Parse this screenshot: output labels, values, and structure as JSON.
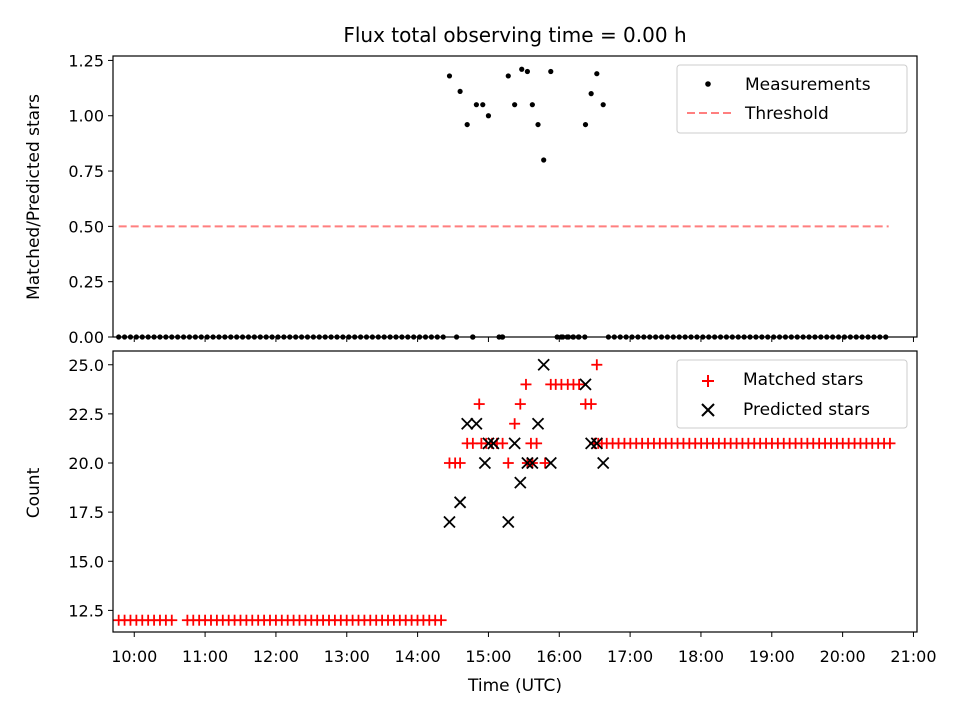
{
  "chart_data": [
    {
      "type": "scatter",
      "title": "Flux total observing time = 0.00 h",
      "xlabel": "",
      "ylabel": "Matched/Predicted stars",
      "xlim_hours": [
        9.7,
        21.05
      ],
      "ylim": [
        0,
        1.27
      ],
      "xticks_hours": [
        10,
        11,
        12,
        13,
        14,
        15,
        16,
        17,
        18,
        19,
        20,
        21
      ],
      "yticks": [
        0.0,
        0.25,
        0.5,
        0.75,
        1.0,
        1.25
      ],
      "ytick_labels": [
        "0.00",
        "0.25",
        "0.50",
        "0.75",
        "1.00",
        "1.25"
      ],
      "legend_position": "top-right",
      "legend": [
        {
          "label": "Measurements",
          "marker": "dot",
          "color": "#000000"
        },
        {
          "label": "Threshold",
          "marker": "dashed-line",
          "color": "#ff7f7f"
        }
      ],
      "threshold": {
        "value": 0.5,
        "x_start": 9.78,
        "x_end": 20.65
      },
      "zero_series": {
        "from": 9.78,
        "to": 20.65,
        "step": 0.0833,
        "gaps": [
          [
            14.42,
            14.53
          ],
          [
            14.59,
            14.75
          ],
          [
            14.83,
            15.12
          ],
          [
            15.25,
            15.95
          ],
          [
            16.28,
            16.35
          ],
          [
            16.42,
            16.65
          ]
        ]
      },
      "measurements": [
        [
          14.45,
          1.18
        ],
        [
          14.6,
          1.11
        ],
        [
          14.7,
          0.96
        ],
        [
          14.83,
          1.05
        ],
        [
          14.92,
          1.05
        ],
        [
          15.0,
          1.0
        ],
        [
          15.28,
          1.18
        ],
        [
          15.37,
          1.05
        ],
        [
          15.47,
          1.21
        ],
        [
          15.55,
          1.2
        ],
        [
          15.62,
          1.05
        ],
        [
          15.7,
          0.96
        ],
        [
          15.78,
          0.8
        ],
        [
          15.88,
          1.2
        ],
        [
          16.37,
          0.96
        ],
        [
          16.45,
          1.1
        ],
        [
          16.53,
          1.19
        ],
        [
          16.62,
          1.05
        ],
        [
          14.55,
          0.0
        ],
        [
          14.78,
          0.0
        ],
        [
          15.15,
          0.0
        ],
        [
          15.2,
          0.0
        ],
        [
          15.97,
          0.0
        ],
        [
          16.05,
          0.0
        ],
        [
          16.13,
          0.0
        ],
        [
          16.2,
          0.0
        ],
        [
          16.27,
          0.0
        ]
      ]
    },
    {
      "type": "scatter",
      "title": "",
      "xlabel": "Time (UTC)",
      "ylabel": "Count",
      "xlim_hours": [
        9.7,
        21.05
      ],
      "ylim": [
        11.4,
        25.7
      ],
      "xticks_hours": [
        10,
        11,
        12,
        13,
        14,
        15,
        16,
        17,
        18,
        19,
        20,
        21
      ],
      "xtick_labels": [
        "10:00",
        "11:00",
        "12:00",
        "13:00",
        "14:00",
        "15:00",
        "16:00",
        "17:00",
        "18:00",
        "19:00",
        "20:00",
        "21:00"
      ],
      "yticks": [
        12.5,
        15.0,
        17.5,
        20.0,
        22.5,
        25.0
      ],
      "ytick_labels": [
        "12.5",
        "15.0",
        "17.5",
        "20.0",
        "22.5",
        "25.0"
      ],
      "legend_position": "top-right",
      "legend": [
        {
          "label": "Matched stars",
          "marker": "plus",
          "color": "#ff0000"
        },
        {
          "label": "Predicted stars",
          "marker": "x",
          "color": "#000000"
        }
      ],
      "matched_runs": [
        {
          "from": 9.78,
          "to": 10.58,
          "step": 0.0833,
          "value": 12
        },
        {
          "from": 10.75,
          "to": 14.4,
          "step": 0.0833,
          "value": 12
        },
        {
          "from": 16.67,
          "to": 20.67,
          "step": 0.0833,
          "value": 21
        }
      ],
      "matched_points": [
        [
          14.45,
          20
        ],
        [
          14.53,
          20
        ],
        [
          14.6,
          20
        ],
        [
          14.7,
          21
        ],
        [
          14.78,
          21
        ],
        [
          14.87,
          23
        ],
        [
          14.9,
          21
        ],
        [
          14.97,
          21
        ],
        [
          15.05,
          21
        ],
        [
          15.12,
          21
        ],
        [
          15.2,
          21
        ],
        [
          15.28,
          20
        ],
        [
          15.37,
          22
        ],
        [
          15.45,
          23
        ],
        [
          15.53,
          24
        ],
        [
          15.6,
          21
        ],
        [
          15.68,
          21
        ],
        [
          15.55,
          20
        ],
        [
          15.62,
          20
        ],
        [
          15.8,
          20
        ],
        [
          15.88,
          24
        ],
        [
          15.95,
          24
        ],
        [
          16.03,
          24
        ],
        [
          16.12,
          24
        ],
        [
          16.2,
          24
        ],
        [
          16.28,
          24
        ],
        [
          16.37,
          23
        ],
        [
          16.45,
          23
        ],
        [
          16.5,
          21
        ],
        [
          16.55,
          21
        ],
        [
          16.6,
          21
        ],
        [
          16.53,
          25
        ]
      ],
      "predicted_points": [
        [
          14.45,
          17
        ],
        [
          14.6,
          18
        ],
        [
          14.7,
          22
        ],
        [
          14.83,
          22
        ],
        [
          14.95,
          20
        ],
        [
          15.0,
          21
        ],
        [
          15.07,
          21
        ],
        [
          15.28,
          17
        ],
        [
          15.37,
          21
        ],
        [
          15.45,
          19
        ],
        [
          15.55,
          20
        ],
        [
          15.62,
          20
        ],
        [
          15.7,
          22
        ],
        [
          15.78,
          25
        ],
        [
          15.88,
          20
        ],
        [
          16.37,
          24
        ],
        [
          16.45,
          21
        ],
        [
          16.53,
          21
        ],
        [
          16.62,
          20
        ]
      ]
    }
  ]
}
